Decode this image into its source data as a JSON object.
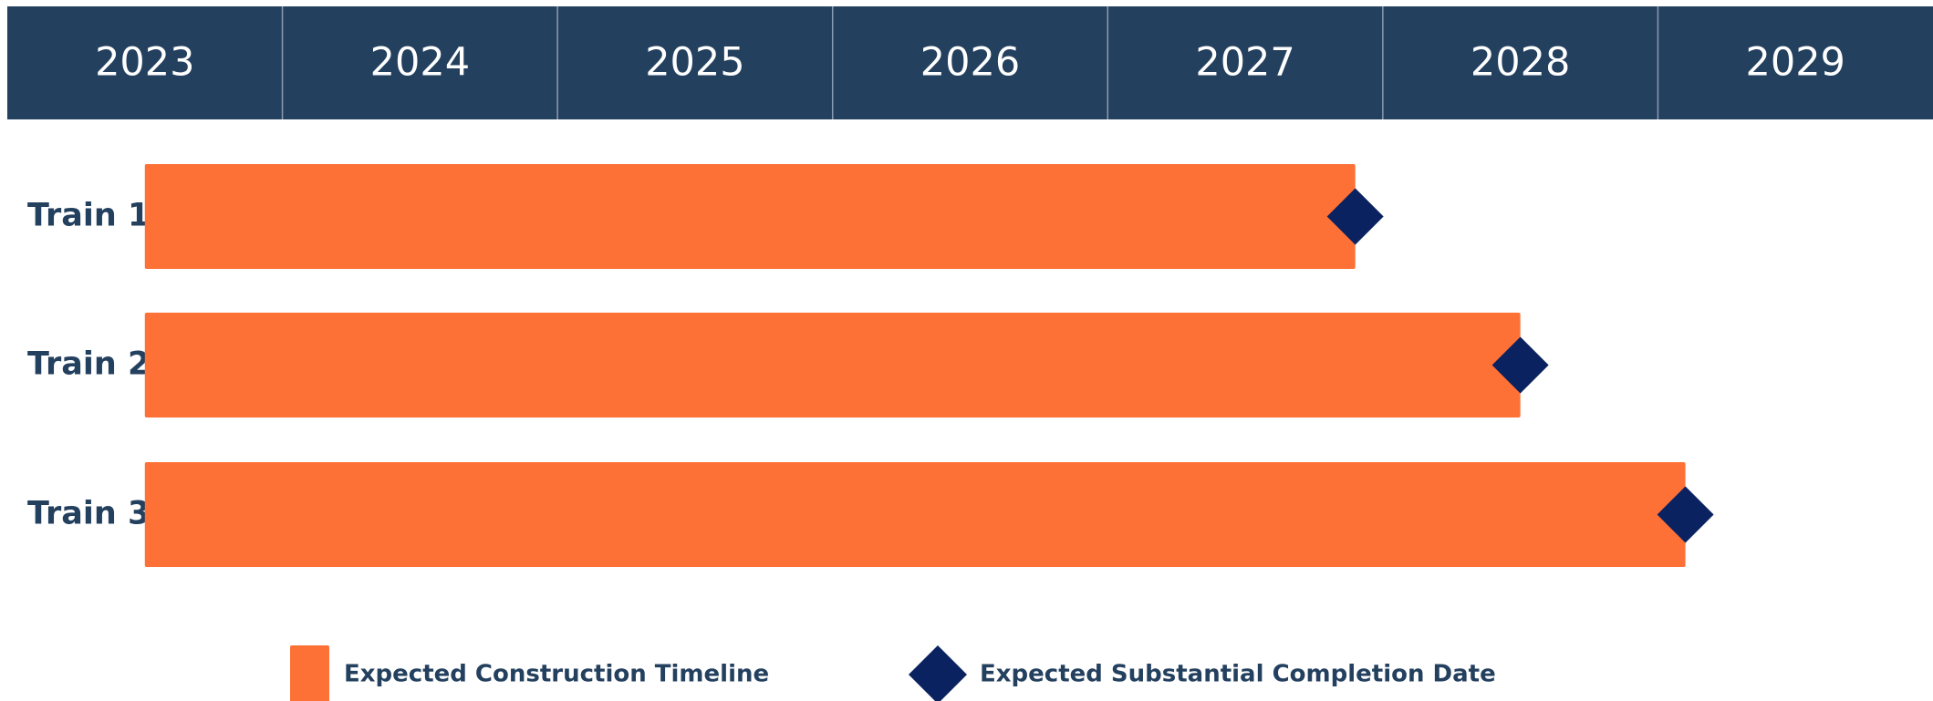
{
  "chart_data": {
    "type": "gantt",
    "categories": [
      "Train 1",
      "Train 2",
      "Train 3"
    ],
    "series": [
      {
        "name": "Expected Construction Timeline",
        "color": "#fe7136",
        "start": [
          2023.5,
          2023.5,
          2023.5
        ],
        "end": [
          2027.9,
          2028.5,
          2029.1
        ]
      },
      {
        "name": "Expected Substantial Completion Date",
        "color": "#0a2260",
        "values": [
          2027.9,
          2028.5,
          2029.1
        ]
      }
    ],
    "xlim": [
      2023,
      2030
    ],
    "xticks": [
      2023,
      2024,
      2025,
      2026,
      2027,
      2028,
      2029
    ],
    "header_color": "#24405f"
  }
}
